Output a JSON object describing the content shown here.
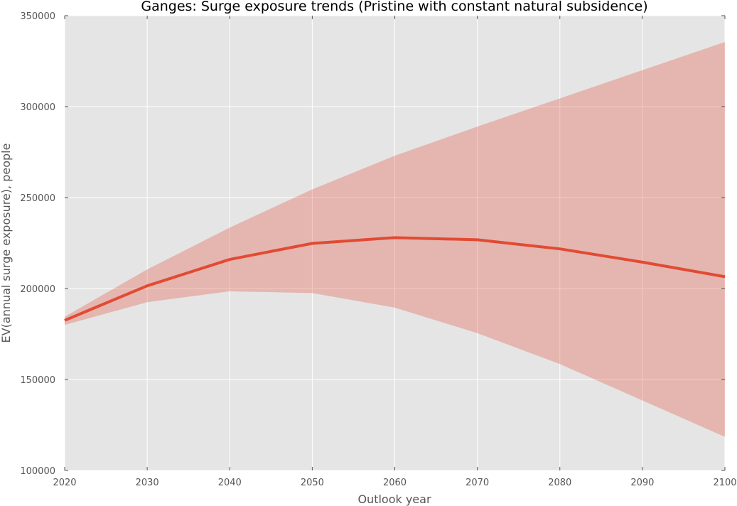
{
  "chart_data": {
    "type": "area",
    "title": "Ganges: Surge exposure trends (Pristine with constant natural subsidence)",
    "xlabel": "Outlook year",
    "ylabel": "EV(annual surge exposure), people",
    "xlim": [
      2020,
      2100
    ],
    "ylim": [
      100000,
      350000
    ],
    "xticks": [
      2020,
      2030,
      2040,
      2050,
      2060,
      2070,
      2080,
      2090,
      2100
    ],
    "yticks": [
      100000,
      150000,
      200000,
      250000,
      300000,
      350000
    ],
    "xtick_labels": [
      "2020",
      "2030",
      "2040",
      "2050",
      "2060",
      "2070",
      "2080",
      "2090",
      "2100"
    ],
    "ytick_labels": [
      "100000",
      "150000",
      "200000",
      "250000",
      "300000",
      "350000"
    ],
    "grid": true,
    "x": [
      2020,
      2030,
      2040,
      2050,
      2060,
      2070,
      2080,
      2090,
      2100
    ],
    "series": [
      {
        "values": [
          182500,
          201500,
          216000,
          224800,
          228000,
          226800,
          221800,
          214500,
          206500
        ],
        "color": "#e24a33"
      }
    ],
    "band": {
      "lower": [
        180000,
        192500,
        198500,
        197500,
        189500,
        175500,
        158500,
        138500,
        118500
      ],
      "upper": [
        184500,
        210500,
        233500,
        254500,
        273000,
        289000,
        304500,
        320000,
        335500
      ],
      "color": "#e24a33"
    },
    "plot_background": "#e5e5e5",
    "grid_color": "#ffffff"
  }
}
